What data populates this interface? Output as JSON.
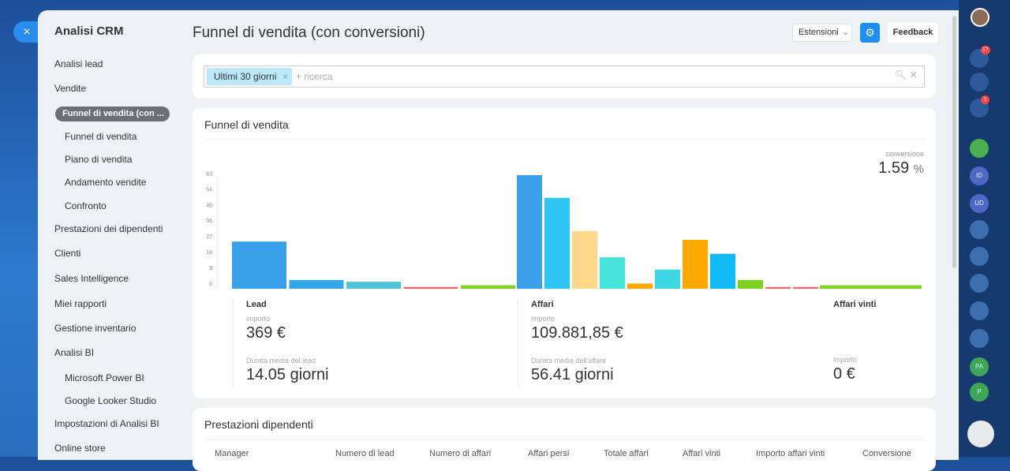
{
  "sidebar": {
    "title": "Analisi CRM",
    "items": [
      {
        "label": "Analisi lead"
      },
      {
        "label": "Vendite",
        "children": [
          "Funnel di vendita (con ...",
          "Funnel di vendita",
          "Piano di vendita",
          "Andamento vendite",
          "Confronto"
        ]
      },
      {
        "label": "Prestazioni dei dipendenti"
      },
      {
        "label": "Clienti"
      },
      {
        "label": "Sales Intelligence"
      },
      {
        "label": "Miei rapporti"
      },
      {
        "label": "Gestione inventario"
      },
      {
        "label": "Analisi BI",
        "children": [
          "Microsoft Power BI",
          "Google Looker Studio"
        ]
      },
      {
        "label": "Impostazioni di Analisi BI"
      },
      {
        "label": "Online store"
      }
    ]
  },
  "header": {
    "title": "Funnel di vendita (con conversioni)",
    "extensions": "Estensioni",
    "feedback": "Feedback"
  },
  "filter": {
    "tag": "Ultimi 30 giorni",
    "placeholder": "+ ricerca"
  },
  "funnel": {
    "title": "Funnel di vendita",
    "conversion_label": "conversione",
    "conversion_value": "1.59",
    "conversion_unit": "%",
    "chart_data": {
      "type": "bar",
      "ylim": [
        0,
        65
      ],
      "yticks": [
        0,
        9,
        18,
        27,
        36,
        45,
        54,
        63
      ],
      "groups": [
        {
          "values": [
            27,
            5,
            4,
            1,
            2
          ],
          "colors": [
            "#3aa0ea",
            "#33a8e8",
            "#4fc3dc",
            "#f4646a",
            "#7ed321"
          ]
        },
        {
          "values": [
            65,
            52,
            33,
            18,
            3,
            11,
            28,
            20,
            5,
            1,
            1
          ],
          "colors": [
            "#3aa0ea",
            "#2fc6f6",
            "#ffd88c",
            "#47e4dc",
            "#ffa900",
            "#3dd8e4",
            "#ffa900",
            "#12bbf5",
            "#7ed321",
            "#f4646a",
            "#f4646a"
          ]
        },
        {
          "values": [
            2
          ],
          "colors": [
            "#7ed321"
          ]
        }
      ]
    },
    "panels": [
      {
        "title": "Lead",
        "amount_label": "importo",
        "amount": "369 €",
        "duration_label": "Durata media del lead",
        "duration": "14.05 giorni"
      },
      {
        "title": "Affari",
        "amount_label": "importo",
        "amount": "109.881,85 €",
        "duration_label": "Durata media dell'affare",
        "duration": "56.41 giorni"
      },
      {
        "title": "Affari vinti",
        "amount_label": "importo",
        "amount": "0 €"
      }
    ]
  },
  "performance": {
    "title": "Prestazioni dipendenti",
    "columns": [
      "Manager",
      "Numero di lead",
      "Numero di affari",
      "Affari persi",
      "Totale affari",
      "Affari vinti",
      "Importo affari vinti",
      "Conversione"
    ]
  },
  "rightbar": {
    "badges": [
      "17",
      "1"
    ],
    "avatars": [
      "ID",
      "UD",
      "PA",
      "P"
    ]
  }
}
